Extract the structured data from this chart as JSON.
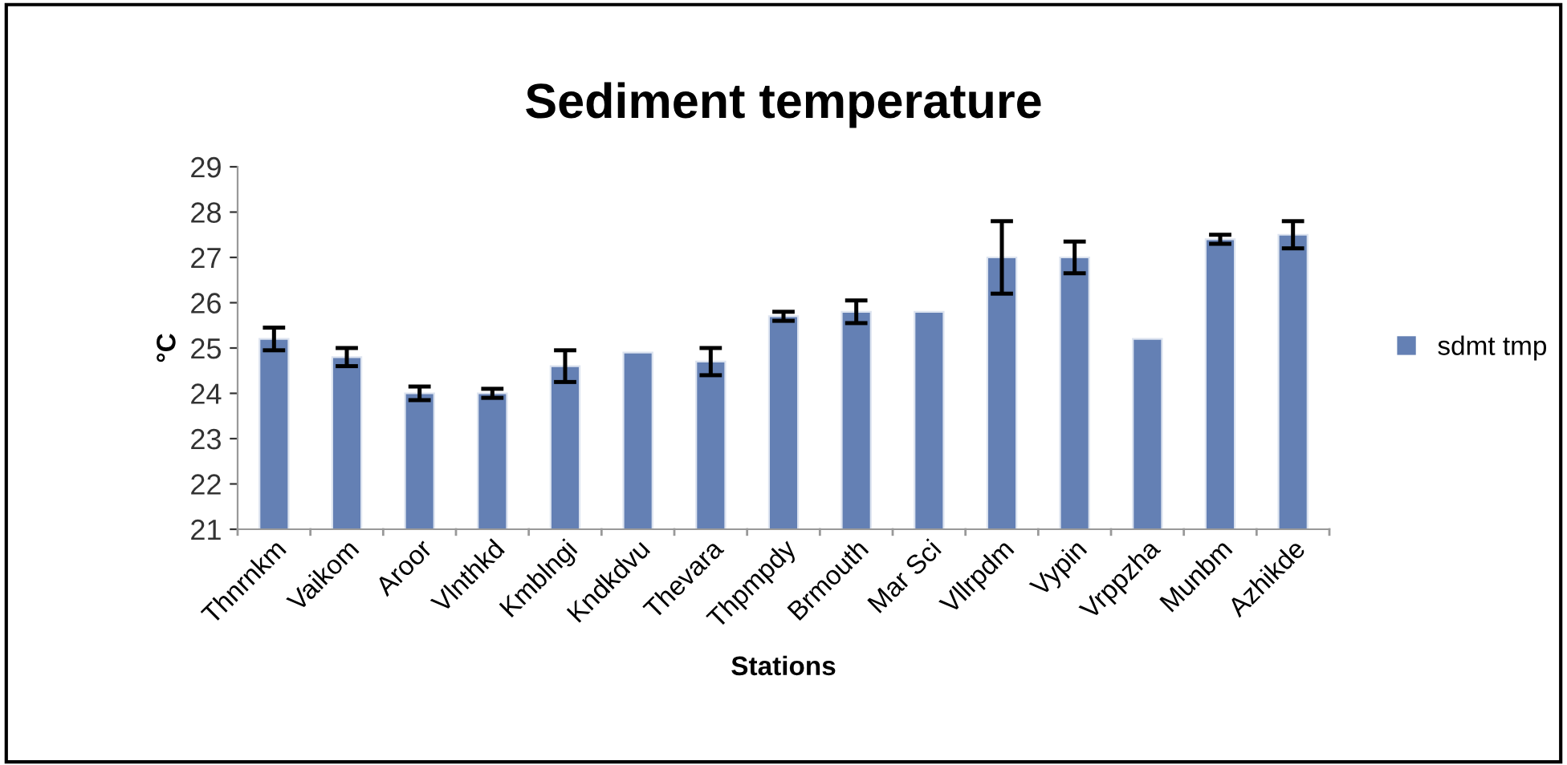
{
  "chart_data": {
    "type": "bar",
    "title": "Sediment temperature",
    "xlabel": "Stations",
    "ylabel": "°C",
    "categories": [
      "Thnrnkm",
      "Vaikom",
      "Aroor",
      "Vlnthkd",
      "Kmblngi",
      "Kndkdvu",
      "Thevara",
      "Thpmpdy",
      "Brmouth",
      "Mar Sci",
      "Vllrpdm",
      "Vypin",
      "Vrppzha",
      "Munbm",
      "Azhikde"
    ],
    "series": [
      {
        "name": "sdmt tmp",
        "color": "#6480b4",
        "values": [
          25.2,
          24.8,
          24.0,
          24.0,
          24.6,
          24.9,
          24.7,
          25.7,
          25.8,
          25.8,
          27.0,
          27.0,
          25.2,
          27.4,
          27.5
        ],
        "errors": [
          0.25,
          0.2,
          0.15,
          0.1,
          0.35,
          null,
          0.3,
          0.1,
          0.25,
          null,
          0.8,
          0.35,
          null,
          0.1,
          0.3
        ]
      }
    ],
    "ylim": [
      21,
      29
    ],
    "yticks": [
      21,
      22,
      23,
      24,
      25,
      26,
      27,
      28,
      29
    ],
    "grid": false,
    "legend": "right"
  }
}
